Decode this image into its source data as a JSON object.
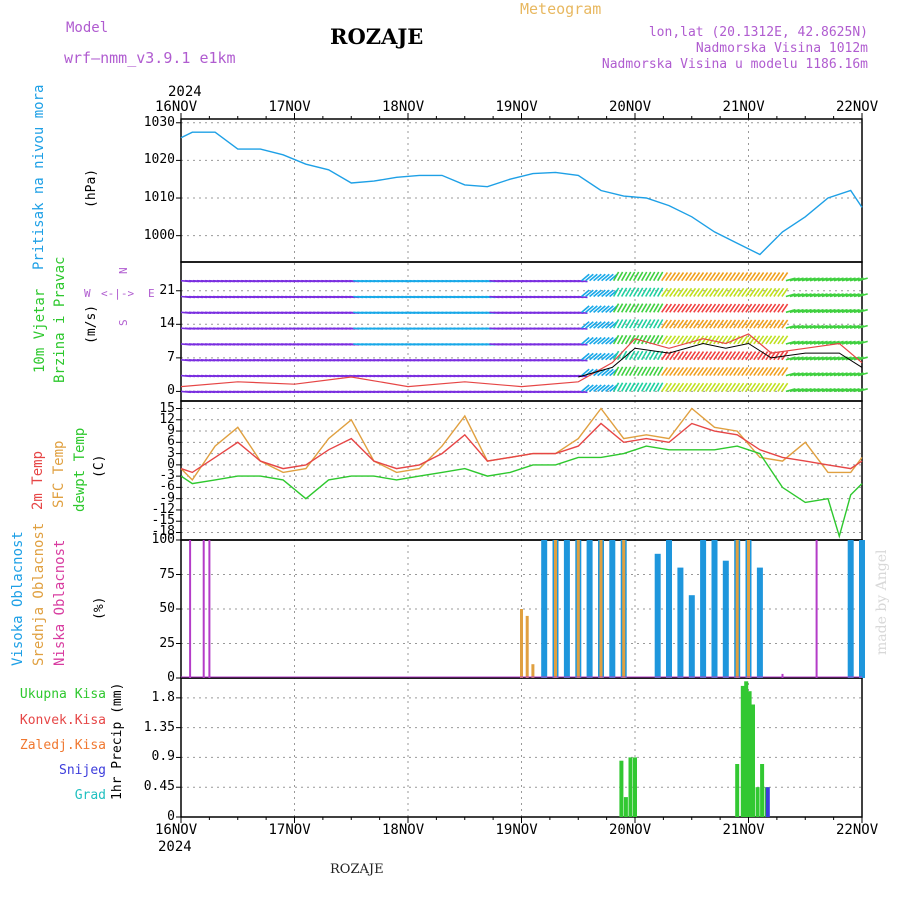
{
  "header": {
    "model_label": "Model",
    "model_name": "wrf—nmm_v3.9.1  e1km",
    "station": "ROZAJE",
    "meteogram": "Meteogram",
    "lonlat": "lon,lat (20.1312E, 42.8625N)",
    "elevation": "Nadmorska Visina 1012m",
    "model_elevation": "Nadmorska Visina u modelu 1186.16m"
  },
  "footer": {
    "station": "ROZAJE",
    "credit": "made by Angel"
  },
  "x_axis": {
    "year": "2024",
    "dates": [
      "16NOV",
      "17NOV",
      "18NOV",
      "19NOV",
      "20NOV",
      "21NOV",
      "22NOV"
    ]
  },
  "wind_legend": {
    "n": "N",
    "s": "S",
    "w": "W",
    "e": "E",
    "arrow": "<-|->"
  },
  "colors": {
    "pressure": "#1ea0e6",
    "temp2m": "#e64646",
    "sfc": "#e0a040",
    "dewpt": "#2ec82e",
    "visoka": "#1e96dc",
    "srednja": "#e0a040",
    "niska": "#b43cc8",
    "total": "#32c832",
    "conv": "#e64646",
    "frozen": "#f07830",
    "snow": "#3c3cdc",
    "hail": "#20c0c0"
  },
  "chart_data": [
    {
      "type": "line",
      "ylabel_lines": [
        "Pritisak na nivou mora",
        "(hPa)"
      ],
      "yticks": [
        1000,
        1010,
        1020,
        1030
      ],
      "ylim": [
        993,
        1031
      ],
      "xlim": [
        0,
        6
      ],
      "series": [
        {
          "values": [
            [
              0,
              1026
            ],
            [
              0.1,
              1027.5
            ],
            [
              0.3,
              1027.5
            ],
            [
              0.5,
              1023
            ],
            [
              0.7,
              1023
            ],
            [
              0.9,
              1021.5
            ],
            [
              1.1,
              1019
            ],
            [
              1.3,
              1017.5
            ],
            [
              1.5,
              1014
            ],
            [
              1.7,
              1014.5
            ],
            [
              1.9,
              1015.5
            ],
            [
              2.1,
              1016
            ],
            [
              2.3,
              1016
            ],
            [
              2.5,
              1013.5
            ],
            [
              2.7,
              1013
            ],
            [
              2.9,
              1015
            ],
            [
              3.1,
              1016.5
            ],
            [
              3.3,
              1016.8
            ],
            [
              3.5,
              1016
            ],
            [
              3.7,
              1012
            ],
            [
              3.9,
              1010.5
            ],
            [
              4.1,
              1010
            ],
            [
              4.3,
              1008
            ],
            [
              4.5,
              1005
            ],
            [
              4.7,
              1001
            ],
            [
              4.9,
              998
            ],
            [
              5.1,
              995
            ],
            [
              5.3,
              1001
            ],
            [
              5.5,
              1005
            ],
            [
              5.7,
              1010
            ],
            [
              5.9,
              1012
            ],
            [
              6,
              1007.5
            ]
          ]
        }
      ]
    },
    {
      "type": "line",
      "ylabel_lines": [
        "10m Vjetar",
        "Brzina i Pravac",
        "(m/s)"
      ],
      "yticks": [
        0,
        7,
        14,
        21
      ],
      "ylim": [
        -2,
        27
      ],
      "xlim": [
        0,
        6
      ],
      "series": [
        {
          "values": [
            [
              0,
              1
            ],
            [
              0.5,
              2
            ],
            [
              1,
              1.5
            ],
            [
              1.5,
              3
            ],
            [
              2,
              1
            ],
            [
              2.5,
              2
            ],
            [
              3,
              1
            ],
            [
              3.5,
              2
            ],
            [
              3.8,
              6
            ],
            [
              4.0,
              11
            ],
            [
              4.3,
              9
            ],
            [
              4.6,
              11
            ],
            [
              4.8,
              10
            ],
            [
              5.0,
              12
            ],
            [
              5.2,
              8
            ],
            [
              5.5,
              9
            ],
            [
              5.8,
              10
            ],
            [
              6,
              6
            ]
          ]
        },
        {
          "values": [
            [
              3.5,
              3
            ],
            [
              3.8,
              5
            ],
            [
              4.0,
              9
            ],
            [
              4.3,
              8
            ],
            [
              4.6,
              10
            ],
            [
              4.8,
              9
            ],
            [
              5.0,
              10
            ],
            [
              5.2,
              7
            ],
            [
              5.5,
              8
            ],
            [
              5.8,
              8
            ],
            [
              6,
              5
            ]
          ]
        }
      ]
    },
    {
      "type": "line",
      "ylabel_lines": [
        "2m Temp",
        "SFC Temp",
        "dewpt Temp",
        "(C)"
      ],
      "yticks": [
        -18,
        -15,
        -12,
        -9,
        -6,
        -3,
        0,
        3,
        6,
        9,
        12,
        15
      ],
      "ylim": [
        -20,
        17
      ],
      "xlim": [
        0,
        6
      ],
      "series": [
        {
          "name": "2m Temp",
          "values": [
            [
              0,
              -1
            ],
            [
              0.1,
              -2
            ],
            [
              0.3,
              2
            ],
            [
              0.5,
              6
            ],
            [
              0.7,
              1
            ],
            [
              0.9,
              -1
            ],
            [
              1.1,
              0
            ],
            [
              1.3,
              4
            ],
            [
              1.5,
              7
            ],
            [
              1.7,
              1
            ],
            [
              1.9,
              -1
            ],
            [
              2.1,
              0
            ],
            [
              2.3,
              3
            ],
            [
              2.5,
              8
            ],
            [
              2.7,
              1
            ],
            [
              2.9,
              2
            ],
            [
              3.1,
              3
            ],
            [
              3.3,
              3
            ],
            [
              3.5,
              5
            ],
            [
              3.7,
              11
            ],
            [
              3.9,
              6
            ],
            [
              4.1,
              7
            ],
            [
              4.3,
              6
            ],
            [
              4.5,
              11
            ],
            [
              4.7,
              9
            ],
            [
              4.9,
              8
            ],
            [
              5.1,
              4
            ],
            [
              5.3,
              2
            ],
            [
              5.5,
              1
            ],
            [
              5.7,
              0
            ],
            [
              5.9,
              -1
            ],
            [
              6,
              1
            ]
          ]
        },
        {
          "name": "SFC Temp",
          "values": [
            [
              0,
              -1
            ],
            [
              0.1,
              -4
            ],
            [
              0.3,
              5
            ],
            [
              0.5,
              10
            ],
            [
              0.7,
              1
            ],
            [
              0.9,
              -2
            ],
            [
              1.1,
              -1
            ],
            [
              1.3,
              7
            ],
            [
              1.5,
              12
            ],
            [
              1.7,
              1
            ],
            [
              1.9,
              -2
            ],
            [
              2.1,
              -1
            ],
            [
              2.3,
              5
            ],
            [
              2.5,
              13
            ],
            [
              2.7,
              1
            ],
            [
              2.9,
              2
            ],
            [
              3.1,
              3
            ],
            [
              3.3,
              3
            ],
            [
              3.5,
              7
            ],
            [
              3.7,
              15
            ],
            [
              3.9,
              7
            ],
            [
              4.1,
              8
            ],
            [
              4.3,
              7
            ],
            [
              4.5,
              15
            ],
            [
              4.7,
              10
            ],
            [
              4.9,
              9
            ],
            [
              5.1,
              2
            ],
            [
              5.3,
              1
            ],
            [
              5.5,
              6
            ],
            [
              5.7,
              -2
            ],
            [
              5.9,
              -2
            ],
            [
              6,
              2
            ]
          ]
        },
        {
          "name": "dewpt Temp",
          "values": [
            [
              0,
              -3
            ],
            [
              0.1,
              -5
            ],
            [
              0.3,
              -4
            ],
            [
              0.5,
              -3
            ],
            [
              0.7,
              -3
            ],
            [
              0.9,
              -4
            ],
            [
              1.1,
              -9
            ],
            [
              1.3,
              -4
            ],
            [
              1.5,
              -3
            ],
            [
              1.7,
              -3
            ],
            [
              1.9,
              -4
            ],
            [
              2.1,
              -3
            ],
            [
              2.3,
              -2
            ],
            [
              2.5,
              -1
            ],
            [
              2.7,
              -3
            ],
            [
              2.9,
              -2
            ],
            [
              3.1,
              0
            ],
            [
              3.3,
              0
            ],
            [
              3.5,
              2
            ],
            [
              3.7,
              2
            ],
            [
              3.9,
              3
            ],
            [
              4.1,
              5
            ],
            [
              4.3,
              4
            ],
            [
              4.5,
              4
            ],
            [
              4.7,
              4
            ],
            [
              4.9,
              5
            ],
            [
              5.1,
              3
            ],
            [
              5.3,
              -6
            ],
            [
              5.5,
              -10
            ],
            [
              5.7,
              -9
            ],
            [
              5.8,
              -19
            ],
            [
              5.9,
              -8
            ],
            [
              6,
              -5
            ]
          ]
        }
      ]
    },
    {
      "type": "bar",
      "ylabel_lines": [
        "Visoka Oblacnost",
        "Srednja Oblacnost",
        "Niska Oblacnost",
        "(%)"
      ],
      "yticks": [
        0,
        25,
        50,
        75,
        100
      ],
      "ylim": [
        0,
        100
      ],
      "xlim": [
        0,
        6
      ],
      "series": [
        {
          "name": "Visoka Oblacnost",
          "values": [
            [
              3.2,
              100
            ],
            [
              3.3,
              100
            ],
            [
              3.4,
              100
            ],
            [
              3.5,
              100
            ],
            [
              3.6,
              100
            ],
            [
              3.7,
              100
            ],
            [
              3.8,
              100
            ],
            [
              3.9,
              100
            ],
            [
              4.2,
              90
            ],
            [
              4.3,
              100
            ],
            [
              4.4,
              80
            ],
            [
              4.5,
              60
            ],
            [
              4.6,
              100
            ],
            [
              4.7,
              100
            ],
            [
              4.8,
              85
            ],
            [
              4.9,
              100
            ],
            [
              5.0,
              100
            ],
            [
              5.1,
              80
            ],
            [
              5.9,
              100
            ],
            [
              6.0,
              100
            ]
          ]
        },
        {
          "name": "Srednja Oblacnost",
          "values": [
            [
              3.0,
              50
            ],
            [
              3.05,
              45
            ],
            [
              3.1,
              10
            ],
            [
              3.3,
              100
            ],
            [
              3.5,
              100
            ],
            [
              3.7,
              100
            ],
            [
              3.9,
              100
            ],
            [
              4.9,
              100
            ],
            [
              5.0,
              100
            ]
          ]
        },
        {
          "name": "Niska Oblacnost",
          "values": [
            [
              0.08,
              100
            ],
            [
              0.2,
              100
            ],
            [
              0.25,
              100
            ],
            [
              5.6,
              100
            ],
            [
              5.3,
              3
            ]
          ]
        }
      ]
    },
    {
      "type": "bar",
      "ylabel_lines": [
        "1hr Precip (mm)"
      ],
      "yticks": [
        0,
        0.45,
        0.9,
        1.35,
        1.8
      ],
      "ylim": [
        0,
        2.1
      ],
      "xlim": [
        0,
        6
      ],
      "series": [
        {
          "name": "Ukupna Kisa",
          "values": [
            [
              3.88,
              0.85
            ],
            [
              3.92,
              0.3
            ],
            [
              3.96,
              0.9
            ],
            [
              4.0,
              0.9
            ],
            [
              4.9,
              0.8
            ],
            [
              4.95,
              1.98
            ],
            [
              4.98,
              2.05
            ],
            [
              5.01,
              1.9
            ],
            [
              5.04,
              1.7
            ],
            [
              5.08,
              0.45
            ],
            [
              5.12,
              0.8
            ],
            [
              5.16,
              0.45
            ]
          ]
        },
        {
          "name": "Snijeg",
          "values": [
            [
              5.17,
              0.45
            ]
          ]
        }
      ]
    }
  ]
}
